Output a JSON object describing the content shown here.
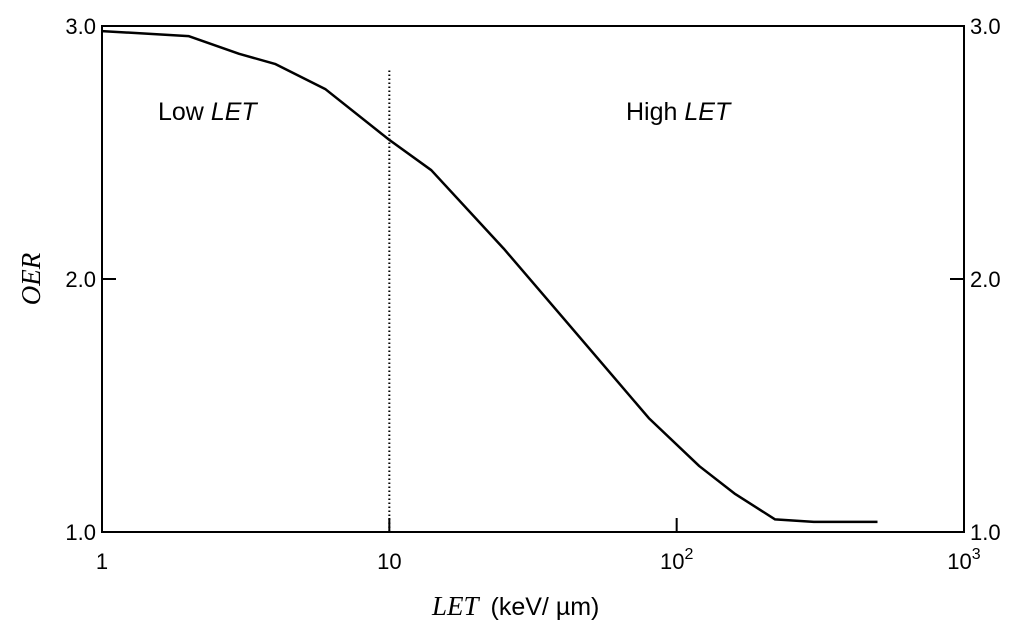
{
  "chart_data": {
    "type": "line",
    "x_scale": "log",
    "xlim": [
      1,
      1000
    ],
    "ylim": [
      1.0,
      3.0
    ],
    "x_ticks": [
      {
        "value": 1,
        "base": "1",
        "exp": ""
      },
      {
        "value": 10,
        "base": "10",
        "exp": ""
      },
      {
        "value": 100,
        "base": "10",
        "exp": "2"
      },
      {
        "value": 1000,
        "base": "10",
        "exp": "3"
      }
    ],
    "y_ticks": [
      {
        "value": 1.0,
        "label": "1.0"
      },
      {
        "value": 2.0,
        "label": "2.0"
      },
      {
        "value": 3.0,
        "label": "3.0"
      }
    ],
    "xlabel": {
      "italic": "LET",
      "unit": "(keV/ µm)"
    },
    "ylabel": "OER",
    "grid": false,
    "threshold": {
      "x": 10
    },
    "regions": [
      {
        "plain": "Low ",
        "italic": "LET"
      },
      {
        "plain": "High ",
        "italic": "LET"
      }
    ],
    "series": [
      {
        "x": [
          1,
          2,
          3,
          4,
          6,
          10,
          14,
          25,
          40,
          80,
          120,
          160,
          220,
          300,
          500
        ],
        "y": [
          2.98,
          2.96,
          2.89,
          2.85,
          2.75,
          2.55,
          2.43,
          2.12,
          1.85,
          1.45,
          1.26,
          1.15,
          1.05,
          1.04,
          1.04
        ]
      }
    ]
  }
}
